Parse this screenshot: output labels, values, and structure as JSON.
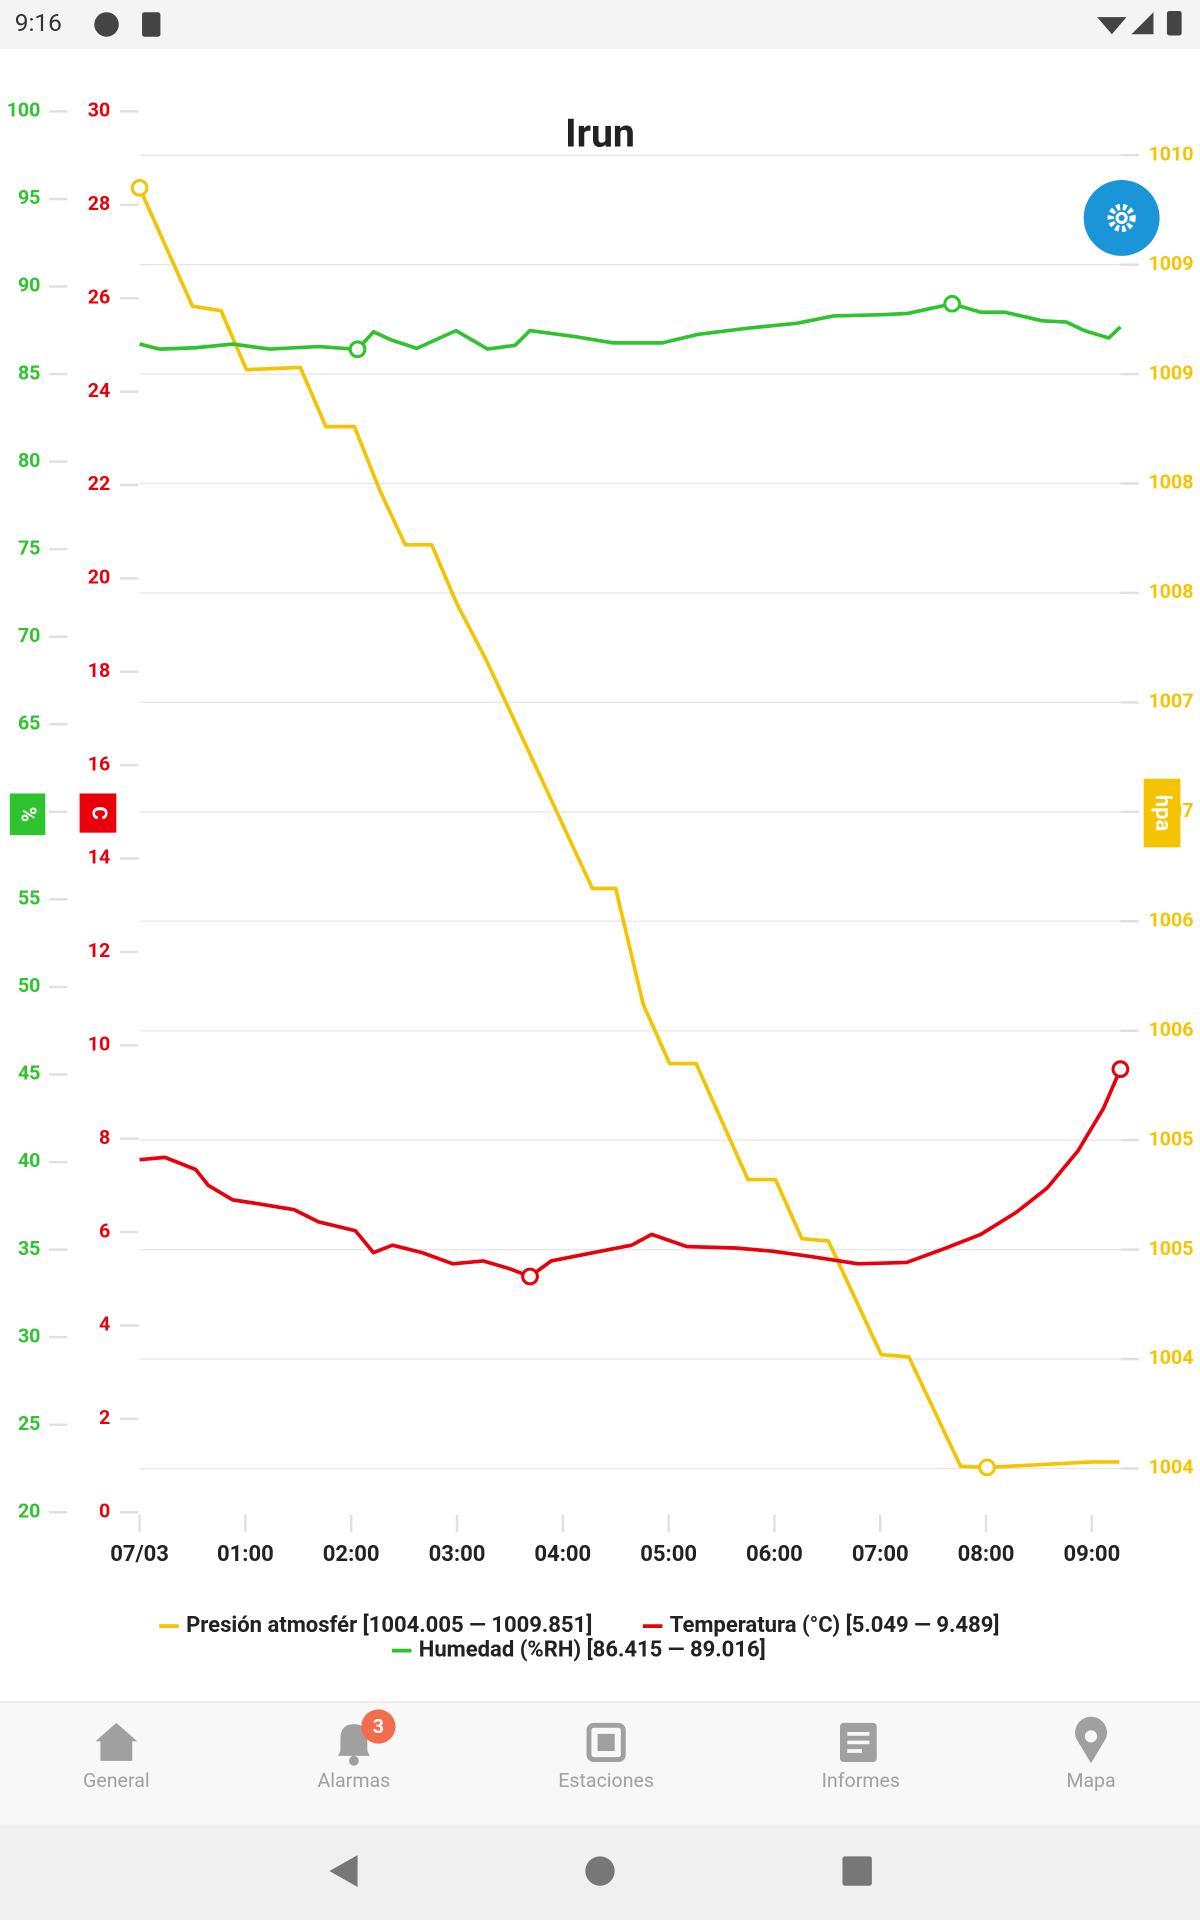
{
  "status_bar": {
    "time": "9:16"
  },
  "chart_data": {
    "type": "line",
    "title": "Irun",
    "xlim": [
      0,
      9.27
    ],
    "xticks": [
      {
        "value": 0,
        "label": "07/03"
      },
      {
        "value": 1,
        "label": "01:00"
      },
      {
        "value": 2,
        "label": "02:00"
      },
      {
        "value": 3,
        "label": "03:00"
      },
      {
        "value": 4,
        "label": "04:00"
      },
      {
        "value": 5,
        "label": "05:00"
      },
      {
        "value": 6,
        "label": "06:00"
      },
      {
        "value": 7,
        "label": "07:00"
      },
      {
        "value": 8,
        "label": "08:00"
      },
      {
        "value": 9,
        "label": "09:00"
      }
    ],
    "ylabel": "%",
    "ylim": [
      20,
      100
    ],
    "yticks": [
      100,
      95,
      90,
      85,
      80,
      75,
      70,
      65,
      60,
      55,
      50,
      45,
      40,
      35,
      30,
      25,
      20
    ],
    "y3label": "C",
    "y3lim": [
      0,
      30
    ],
    "y3ticks": [
      30,
      28,
      26,
      24,
      22,
      20,
      18,
      16,
      14,
      12,
      10,
      8,
      6,
      4,
      2,
      0
    ],
    "y2label": "hpa",
    "y2lim": [
      1003.8,
      1010.2
    ],
    "y2ticks": [
      1010,
      {
        "value": 1009.5,
        "label": "1009"
      },
      1009,
      {
        "value": 1008.5,
        "label": "1008"
      },
      1008,
      {
        "value": 1007.5,
        "label": "1007"
      },
      1007,
      {
        "value": 1006.5,
        "label": "1006"
      },
      1006,
      {
        "value": 1005.5,
        "label": "1005"
      },
      1005,
      {
        "value": 1004.5,
        "label": "1004"
      },
      1004
    ],
    "grid": true,
    "series": [
      {
        "name": "Presión atmosfér [1004.005 — 1009.851]",
        "color": "#f5c400",
        "axis": "y2",
        "x": [
          0,
          0.5,
          0.77,
          1.01,
          1.52,
          1.76,
          2.03,
          2.27,
          2.51,
          2.76,
          3.0,
          3.28,
          3.78,
          4.28,
          4.5,
          4.76,
          5.01,
          5.26,
          5.75,
          6.01,
          6.26,
          6.51,
          7.01,
          7.27,
          7.76,
          8.01,
          9.0,
          9.26
        ],
        "values": [
          1009.851,
          1009.31,
          1009.29,
          1009.02,
          1009.03,
          1008.76,
          1008.76,
          1008.47,
          1008.22,
          1008.22,
          1007.95,
          1007.69,
          1007.17,
          1006.65,
          1006.65,
          1006.12,
          1005.85,
          1005.85,
          1005.32,
          1005.32,
          1005.05,
          1005.04,
          1004.52,
          1004.51,
          1004.01,
          1004.005,
          1004.03,
          1004.03
        ]
      },
      {
        "name": "Temperatura (°C) [5.049 — 9.489]",
        "color": "#e8000b",
        "axis": "y3",
        "x": [
          0,
          0.24,
          0.53,
          0.65,
          0.88,
          1.11,
          1.46,
          1.69,
          2.04,
          2.21,
          2.39,
          2.67,
          2.96,
          3.25,
          3.49,
          3.69,
          3.89,
          4.36,
          4.65,
          4.84,
          5.17,
          5.63,
          5.98,
          6.33,
          6.79,
          7.25,
          7.6,
          7.95,
          8.29,
          8.58,
          8.87,
          9.11,
          9.27
        ],
        "values": [
          7.55,
          7.6,
          7.34,
          7.0,
          6.69,
          6.61,
          6.48,
          6.22,
          6.03,
          5.56,
          5.72,
          5.56,
          5.32,
          5.38,
          5.22,
          5.049,
          5.38,
          5.59,
          5.72,
          5.95,
          5.69,
          5.66,
          5.59,
          5.48,
          5.32,
          5.35,
          5.64,
          5.95,
          6.43,
          6.95,
          7.74,
          8.65,
          9.489
        ]
      },
      {
        "name": "Humedad (%RH) [86.415 — 89.016]",
        "color": "#2fc42f",
        "axis": "y",
        "x": [
          0,
          0.19,
          0.53,
          0.88,
          1.23,
          1.69,
          2.06,
          2.21,
          2.39,
          2.62,
          2.99,
          3.29,
          3.55,
          3.69,
          4.12,
          4.47,
          4.94,
          5.28,
          5.75,
          6.21,
          6.56,
          7.02,
          7.26,
          7.68,
          7.95,
          8.18,
          8.53,
          8.76,
          8.93,
          9.16,
          9.27
        ],
        "values": [
          86.71,
          86.43,
          86.5,
          86.71,
          86.43,
          86.57,
          86.415,
          87.41,
          86.92,
          86.47,
          87.48,
          86.43,
          86.64,
          87.48,
          87.13,
          86.78,
          86.78,
          87.27,
          87.62,
          87.9,
          88.32,
          88.39,
          88.46,
          89.016,
          88.53,
          88.53,
          88.04,
          87.97,
          87.48,
          87.06,
          87.69
        ]
      }
    ]
  },
  "nav": {
    "items": [
      "General",
      "Alarmas",
      "Estaciones",
      "Informes",
      "Mapa"
    ],
    "alarm_badge": "3"
  }
}
